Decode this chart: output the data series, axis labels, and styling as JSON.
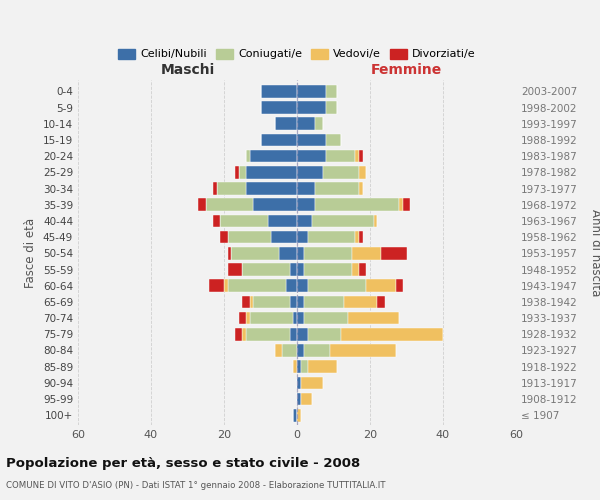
{
  "age_groups": [
    "100+",
    "95-99",
    "90-94",
    "85-89",
    "80-84",
    "75-79",
    "70-74",
    "65-69",
    "60-64",
    "55-59",
    "50-54",
    "45-49",
    "40-44",
    "35-39",
    "30-34",
    "25-29",
    "20-24",
    "15-19",
    "10-14",
    "5-9",
    "0-4"
  ],
  "birth_years": [
    "≤ 1907",
    "1908-1912",
    "1913-1917",
    "1918-1922",
    "1923-1927",
    "1928-1932",
    "1933-1937",
    "1938-1942",
    "1943-1947",
    "1948-1952",
    "1953-1957",
    "1958-1962",
    "1963-1967",
    "1968-1972",
    "1973-1977",
    "1978-1982",
    "1983-1987",
    "1988-1992",
    "1993-1997",
    "1998-2002",
    "2003-2007"
  ],
  "maschi": {
    "celibi": [
      1,
      0,
      0,
      0,
      0,
      2,
      1,
      2,
      3,
      2,
      5,
      7,
      8,
      12,
      14,
      14,
      13,
      10,
      6,
      10,
      10
    ],
    "coniugati": [
      0,
      0,
      0,
      0,
      4,
      12,
      12,
      10,
      16,
      13,
      13,
      12,
      13,
      13,
      8,
      2,
      1,
      0,
      0,
      0,
      0
    ],
    "vedovi": [
      0,
      0,
      0,
      1,
      2,
      1,
      1,
      1,
      1,
      0,
      0,
      0,
      0,
      0,
      0,
      0,
      0,
      0,
      0,
      0,
      0
    ],
    "divorziati": [
      0,
      0,
      0,
      0,
      0,
      2,
      2,
      2,
      4,
      4,
      1,
      2,
      2,
      2,
      1,
      1,
      0,
      0,
      0,
      0,
      0
    ]
  },
  "femmine": {
    "nubili": [
      0,
      1,
      1,
      1,
      2,
      3,
      2,
      2,
      3,
      2,
      2,
      3,
      4,
      5,
      5,
      7,
      8,
      8,
      5,
      8,
      8
    ],
    "coniugate": [
      0,
      0,
      0,
      2,
      7,
      9,
      12,
      11,
      16,
      13,
      13,
      13,
      17,
      23,
      12,
      10,
      8,
      4,
      2,
      3,
      3
    ],
    "vedove": [
      1,
      3,
      6,
      8,
      18,
      28,
      14,
      9,
      8,
      2,
      8,
      1,
      1,
      1,
      1,
      2,
      1,
      0,
      0,
      0,
      0
    ],
    "divorziate": [
      0,
      0,
      0,
      0,
      0,
      0,
      0,
      2,
      2,
      2,
      7,
      1,
      0,
      2,
      0,
      0,
      1,
      0,
      0,
      0,
      0
    ]
  },
  "colors": {
    "celibi_nubili": "#3d6fa8",
    "coniugati": "#b8cc96",
    "vedovi": "#f0c060",
    "divorziati": "#cc2222"
  },
  "xlim": 60,
  "title": "Popolazione per età, sesso e stato civile - 2008",
  "subtitle": "COMUNE DI VITO D'ASIO (PN) - Dati ISTAT 1° gennaio 2008 - Elaborazione TUTTITALIA.IT",
  "xlabel_left": "Maschi",
  "xlabel_right": "Femmine",
  "ylabel_left": "Fasce di età",
  "ylabel_right": "Anni di nascita",
  "legend_labels": [
    "Celibi/Nubili",
    "Coniugati/e",
    "Vedovi/e",
    "Divorziati/e"
  ],
  "background_color": "#f2f2f2",
  "grid_color": "#cccccc"
}
